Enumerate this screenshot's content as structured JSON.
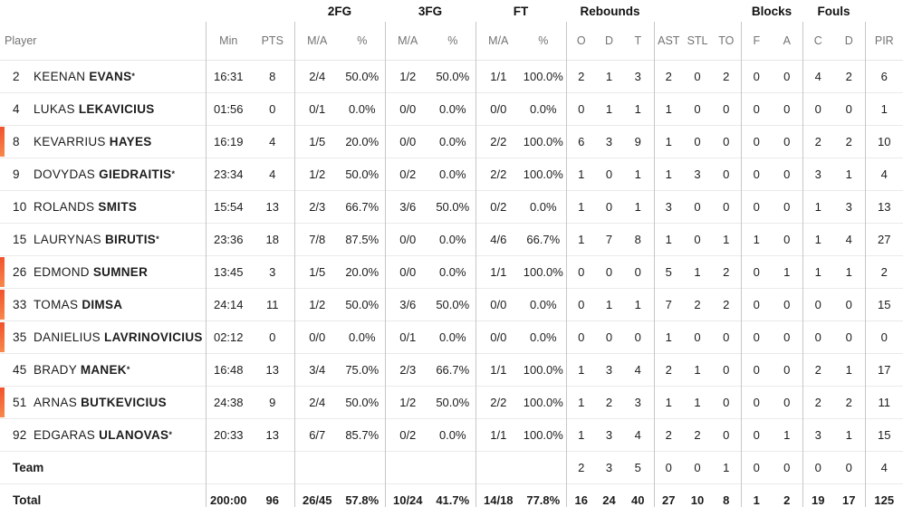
{
  "header": {
    "groups": {
      "fg2": "2FG",
      "fg3": "3FG",
      "ft": "FT",
      "rebounds": "Rebounds",
      "blocks": "Blocks",
      "fouls": "Fouls"
    },
    "columns": {
      "player": "Player",
      "min": "Min",
      "pts": "PTS",
      "ma": "M/A",
      "pct": "%",
      "reb_o": "O",
      "reb_d": "D",
      "reb_t": "T",
      "ast": "AST",
      "stl": "STL",
      "to": "TO",
      "blk_f": "F",
      "blk_a": "A",
      "foul_c": "C",
      "foul_d": "D",
      "pir": "PIR"
    }
  },
  "legend": {
    "starter_mark": "*"
  },
  "colors": {
    "on_court_marker_start": "#f1512b",
    "on_court_marker_end": "#f88a4c",
    "text_dark": "#1c1c1c",
    "text_gray": "#737373"
  },
  "players": [
    {
      "num": "2",
      "first": "KEENAN",
      "last": "EVANS",
      "starter": true,
      "on_court": false,
      "min": "16:31",
      "pts": "8",
      "fg2_ma": "2/4",
      "fg2_pct": "50.0%",
      "fg3_ma": "1/2",
      "fg3_pct": "50.0%",
      "ft_ma": "1/1",
      "ft_pct": "100.0%",
      "reb_o": "2",
      "reb_d": "1",
      "reb_t": "3",
      "ast": "2",
      "stl": "0",
      "to": "2",
      "blk_f": "0",
      "blk_a": "0",
      "foul_c": "4",
      "foul_d": "2",
      "pir": "6"
    },
    {
      "num": "4",
      "first": "LUKAS",
      "last": "LEKAVICIUS",
      "starter": false,
      "on_court": false,
      "min": "01:56",
      "pts": "0",
      "fg2_ma": "0/1",
      "fg2_pct": "0.0%",
      "fg3_ma": "0/0",
      "fg3_pct": "0.0%",
      "ft_ma": "0/0",
      "ft_pct": "0.0%",
      "reb_o": "0",
      "reb_d": "1",
      "reb_t": "1",
      "ast": "1",
      "stl": "0",
      "to": "0",
      "blk_f": "0",
      "blk_a": "0",
      "foul_c": "0",
      "foul_d": "0",
      "pir": "1"
    },
    {
      "num": "8",
      "first": "KEVARRIUS",
      "last": "HAYES",
      "starter": false,
      "on_court": true,
      "min": "16:19",
      "pts": "4",
      "fg2_ma": "1/5",
      "fg2_pct": "20.0%",
      "fg3_ma": "0/0",
      "fg3_pct": "0.0%",
      "ft_ma": "2/2",
      "ft_pct": "100.0%",
      "reb_o": "6",
      "reb_d": "3",
      "reb_t": "9",
      "ast": "1",
      "stl": "0",
      "to": "0",
      "blk_f": "0",
      "blk_a": "0",
      "foul_c": "2",
      "foul_d": "2",
      "pir": "10"
    },
    {
      "num": "9",
      "first": "DOVYDAS",
      "last": "GIEDRAITIS",
      "starter": true,
      "on_court": false,
      "min": "23:34",
      "pts": "4",
      "fg2_ma": "1/2",
      "fg2_pct": "50.0%",
      "fg3_ma": "0/2",
      "fg3_pct": "0.0%",
      "ft_ma": "2/2",
      "ft_pct": "100.0%",
      "reb_o": "1",
      "reb_d": "0",
      "reb_t": "1",
      "ast": "1",
      "stl": "3",
      "to": "0",
      "blk_f": "0",
      "blk_a": "0",
      "foul_c": "3",
      "foul_d": "1",
      "pir": "4"
    },
    {
      "num": "10",
      "first": "ROLANDS",
      "last": "SMITS",
      "starter": false,
      "on_court": false,
      "min": "15:54",
      "pts": "13",
      "fg2_ma": "2/3",
      "fg2_pct": "66.7%",
      "fg3_ma": "3/6",
      "fg3_pct": "50.0%",
      "ft_ma": "0/2",
      "ft_pct": "0.0%",
      "reb_o": "1",
      "reb_d": "0",
      "reb_t": "1",
      "ast": "3",
      "stl": "0",
      "to": "0",
      "blk_f": "0",
      "blk_a": "0",
      "foul_c": "1",
      "foul_d": "3",
      "pir": "13"
    },
    {
      "num": "15",
      "first": "LAURYNAS",
      "last": "BIRUTIS",
      "starter": true,
      "on_court": false,
      "min": "23:36",
      "pts": "18",
      "fg2_ma": "7/8",
      "fg2_pct": "87.5%",
      "fg3_ma": "0/0",
      "fg3_pct": "0.0%",
      "ft_ma": "4/6",
      "ft_pct": "66.7%",
      "reb_o": "1",
      "reb_d": "7",
      "reb_t": "8",
      "ast": "1",
      "stl": "0",
      "to": "1",
      "blk_f": "1",
      "blk_a": "0",
      "foul_c": "1",
      "foul_d": "4",
      "pir": "27"
    },
    {
      "num": "26",
      "first": "EDMOND",
      "last": "SUMNER",
      "starter": false,
      "on_court": true,
      "min": "13:45",
      "pts": "3",
      "fg2_ma": "1/5",
      "fg2_pct": "20.0%",
      "fg3_ma": "0/0",
      "fg3_pct": "0.0%",
      "ft_ma": "1/1",
      "ft_pct": "100.0%",
      "reb_o": "0",
      "reb_d": "0",
      "reb_t": "0",
      "ast": "5",
      "stl": "1",
      "to": "2",
      "blk_f": "0",
      "blk_a": "1",
      "foul_c": "1",
      "foul_d": "1",
      "pir": "2"
    },
    {
      "num": "33",
      "first": "TOMAS",
      "last": "DIMSA",
      "starter": false,
      "on_court": true,
      "min": "24:14",
      "pts": "11",
      "fg2_ma": "1/2",
      "fg2_pct": "50.0%",
      "fg3_ma": "3/6",
      "fg3_pct": "50.0%",
      "ft_ma": "0/0",
      "ft_pct": "0.0%",
      "reb_o": "0",
      "reb_d": "1",
      "reb_t": "1",
      "ast": "7",
      "stl": "2",
      "to": "2",
      "blk_f": "0",
      "blk_a": "0",
      "foul_c": "0",
      "foul_d": "0",
      "pir": "15"
    },
    {
      "num": "35",
      "first": "DANIELIUS",
      "last": "LAVRINOVICIUS",
      "starter": false,
      "on_court": true,
      "min": "02:12",
      "pts": "0",
      "fg2_ma": "0/0",
      "fg2_pct": "0.0%",
      "fg3_ma": "0/1",
      "fg3_pct": "0.0%",
      "ft_ma": "0/0",
      "ft_pct": "0.0%",
      "reb_o": "0",
      "reb_d": "0",
      "reb_t": "0",
      "ast": "1",
      "stl": "0",
      "to": "0",
      "blk_f": "0",
      "blk_a": "0",
      "foul_c": "0",
      "foul_d": "0",
      "pir": "0"
    },
    {
      "num": "45",
      "first": "BRADY",
      "last": "MANEK",
      "starter": true,
      "on_court": false,
      "min": "16:48",
      "pts": "13",
      "fg2_ma": "3/4",
      "fg2_pct": "75.0%",
      "fg3_ma": "2/3",
      "fg3_pct": "66.7%",
      "ft_ma": "1/1",
      "ft_pct": "100.0%",
      "reb_o": "1",
      "reb_d": "3",
      "reb_t": "4",
      "ast": "2",
      "stl": "1",
      "to": "0",
      "blk_f": "0",
      "blk_a": "0",
      "foul_c": "2",
      "foul_d": "1",
      "pir": "17"
    },
    {
      "num": "51",
      "first": "ARNAS",
      "last": "BUTKEVICIUS",
      "starter": false,
      "on_court": true,
      "min": "24:38",
      "pts": "9",
      "fg2_ma": "2/4",
      "fg2_pct": "50.0%",
      "fg3_ma": "1/2",
      "fg3_pct": "50.0%",
      "ft_ma": "2/2",
      "ft_pct": "100.0%",
      "reb_o": "1",
      "reb_d": "2",
      "reb_t": "3",
      "ast": "1",
      "stl": "1",
      "to": "0",
      "blk_f": "0",
      "blk_a": "0",
      "foul_c": "2",
      "foul_d": "2",
      "pir": "11"
    },
    {
      "num": "92",
      "first": "EDGARAS",
      "last": "ULANOVAS",
      "starter": true,
      "on_court": false,
      "min": "20:33",
      "pts": "13",
      "fg2_ma": "6/7",
      "fg2_pct": "85.7%",
      "fg3_ma": "0/2",
      "fg3_pct": "0.0%",
      "ft_ma": "1/1",
      "ft_pct": "100.0%",
      "reb_o": "1",
      "reb_d": "3",
      "reb_t": "4",
      "ast": "2",
      "stl": "2",
      "to": "0",
      "blk_f": "0",
      "blk_a": "1",
      "foul_c": "3",
      "foul_d": "1",
      "pir": "15"
    }
  ],
  "team_row": {
    "label": "Team",
    "min": "",
    "pts": "",
    "fg2_ma": "",
    "fg2_pct": "",
    "fg3_ma": "",
    "fg3_pct": "",
    "ft_ma": "",
    "ft_pct": "",
    "reb_o": "2",
    "reb_d": "3",
    "reb_t": "5",
    "ast": "0",
    "stl": "0",
    "to": "1",
    "blk_f": "0",
    "blk_a": "0",
    "foul_c": "0",
    "foul_d": "0",
    "pir": "4"
  },
  "total_row": {
    "label": "Total",
    "min": "200:00",
    "pts": "96",
    "fg2_ma": "26/45",
    "fg2_pct": "57.8%",
    "fg3_ma": "10/24",
    "fg3_pct": "41.7%",
    "ft_ma": "14/18",
    "ft_pct": "77.8%",
    "reb_o": "16",
    "reb_d": "24",
    "reb_t": "40",
    "ast": "27",
    "stl": "10",
    "to": "8",
    "blk_f": "1",
    "blk_a": "2",
    "foul_c": "19",
    "foul_d": "17",
    "pir": "125"
  }
}
